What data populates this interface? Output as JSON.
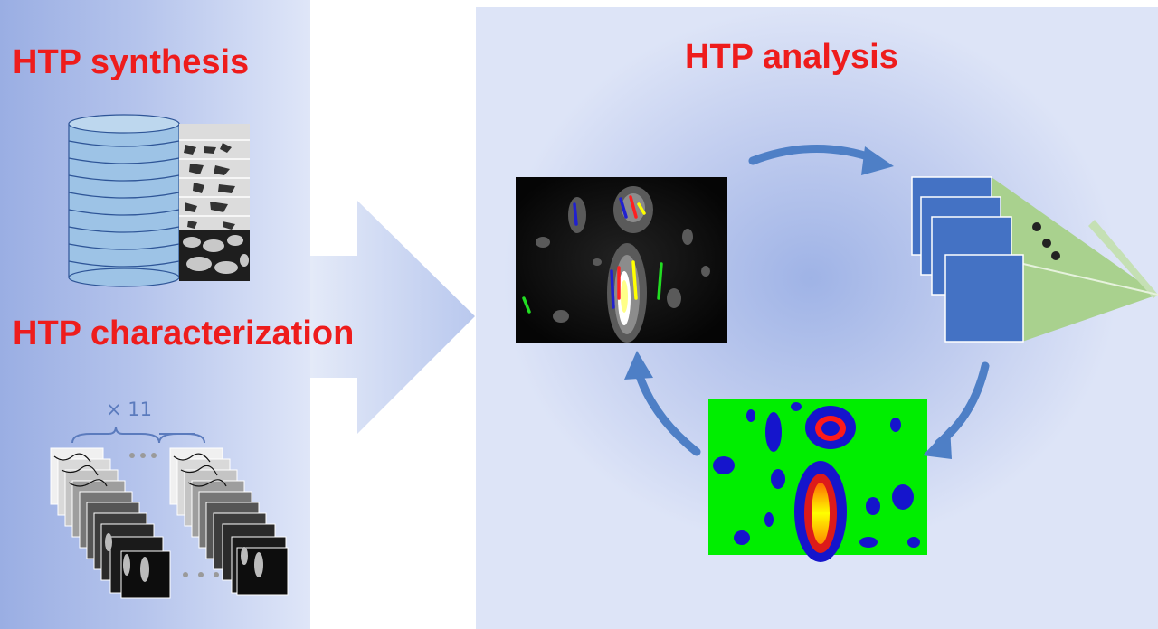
{
  "labels": {
    "synthesis": "HTP synthesis",
    "characterization": "HTP characterization",
    "analysis": "HTP analysis",
    "repeat_count": "× 11"
  },
  "colors": {
    "title_red": "#ee1c1c",
    "arrow_blue": "#4e7fc6",
    "cnn_blue": "#4472c4",
    "cnn_green": "#a9d18e",
    "seg_green": "#00ee00",
    "seg_blue": "#1515cc"
  },
  "icons": {
    "database": "database-cylinder-icon",
    "image_stack": "image-stack-icon",
    "cnn": "neural-network-icon"
  }
}
